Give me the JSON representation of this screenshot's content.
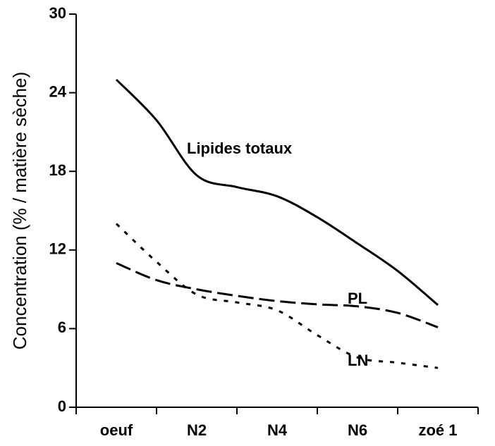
{
  "chart_data": {
    "type": "line",
    "y_label": "Concentration (% / matière sèche)",
    "categories": [
      "oeuf",
      null,
      "N2",
      null,
      "N4",
      null,
      "N6",
      null,
      "zoé 1"
    ],
    "series": [
      {
        "name": "Lipides totaux",
        "color": "#000000",
        "dash": "solid",
        "values": [
          25.0,
          21.9,
          17.7,
          16.8,
          16.1,
          14.5,
          12.5,
          10.4,
          7.8
        ]
      },
      {
        "name": "PL",
        "color": "#000000",
        "dash": "long-dash",
        "values": [
          11.0,
          9.7,
          9.0,
          8.5,
          8.1,
          7.85,
          7.7,
          7.2,
          6.1
        ]
      },
      {
        "name": "LN",
        "color": "#000000",
        "dash": "dot",
        "values": [
          14.0,
          11.1,
          8.6,
          8.0,
          7.4,
          5.5,
          3.8,
          3.4,
          3.0
        ]
      }
    ],
    "ylim": [
      0,
      30
    ],
    "yticks": [
      0,
      6,
      12,
      18,
      24,
      30
    ],
    "grid": false
  }
}
